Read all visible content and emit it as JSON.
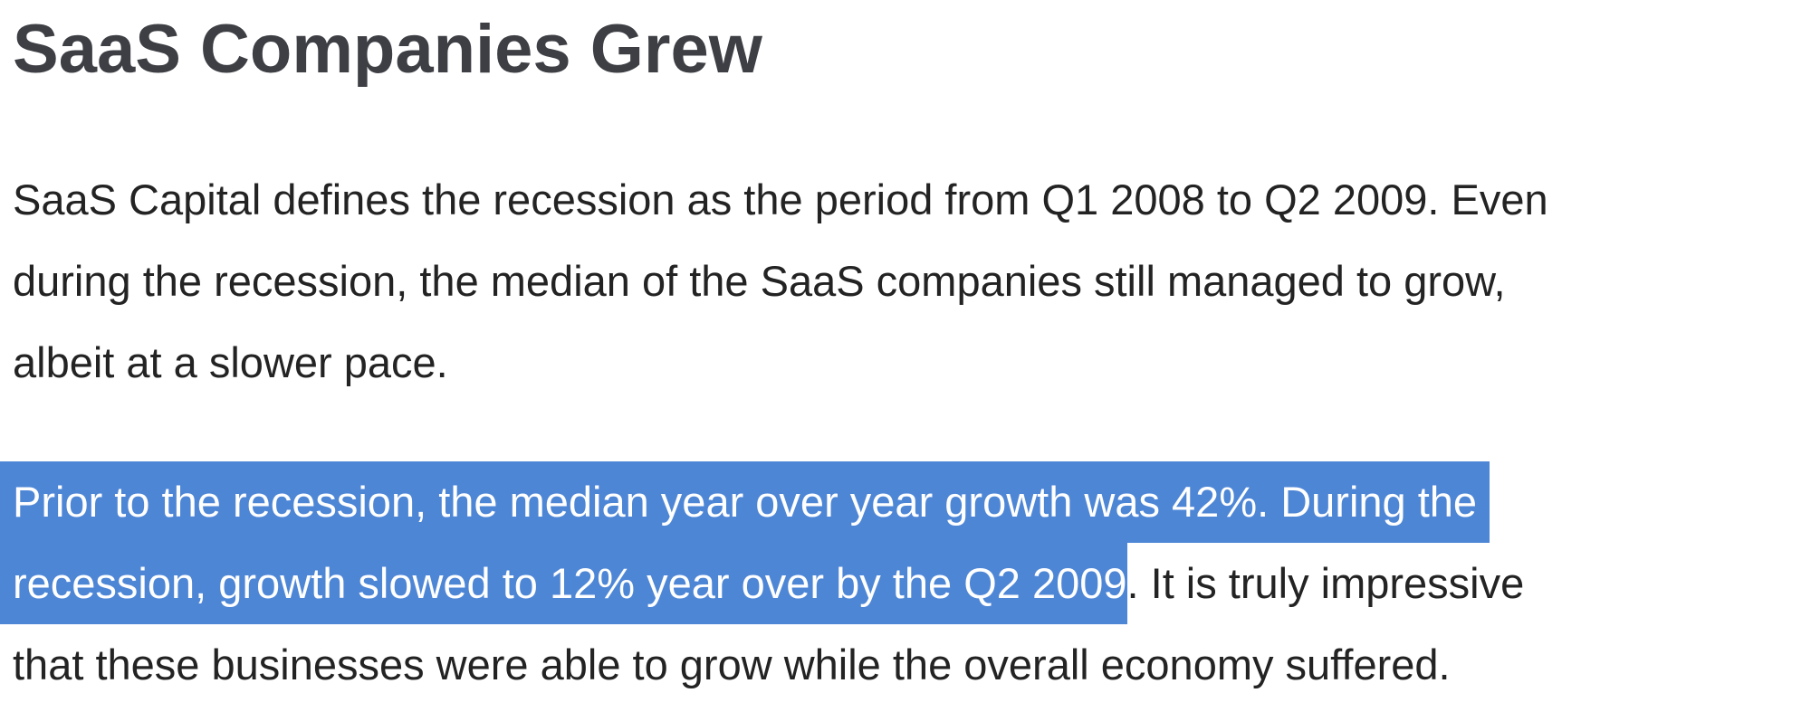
{
  "article": {
    "heading": "SaaS Companies Grew",
    "paragraph1": {
      "lines": [
        "SaaS Capital defines the recession as the period from Q1 2008 to Q2 2009. Even",
        "during the recession, the median of the SaaS companies still managed to grow,",
        "albeit at a slower pace."
      ]
    },
    "paragraph2": {
      "selected_line1": "Prior to the recession, the median year over year growth was 42%. During the",
      "selected_line2": "recession, growth slowed to 12% year over by the Q2 2009",
      "line2_rest": ". It is truly impressive",
      "line3": "that these businesses were able to grow while the overall economy suffered."
    },
    "selection_color": "#4e86d6",
    "heading_color": "#3d3f44",
    "text_color": "#232323"
  }
}
